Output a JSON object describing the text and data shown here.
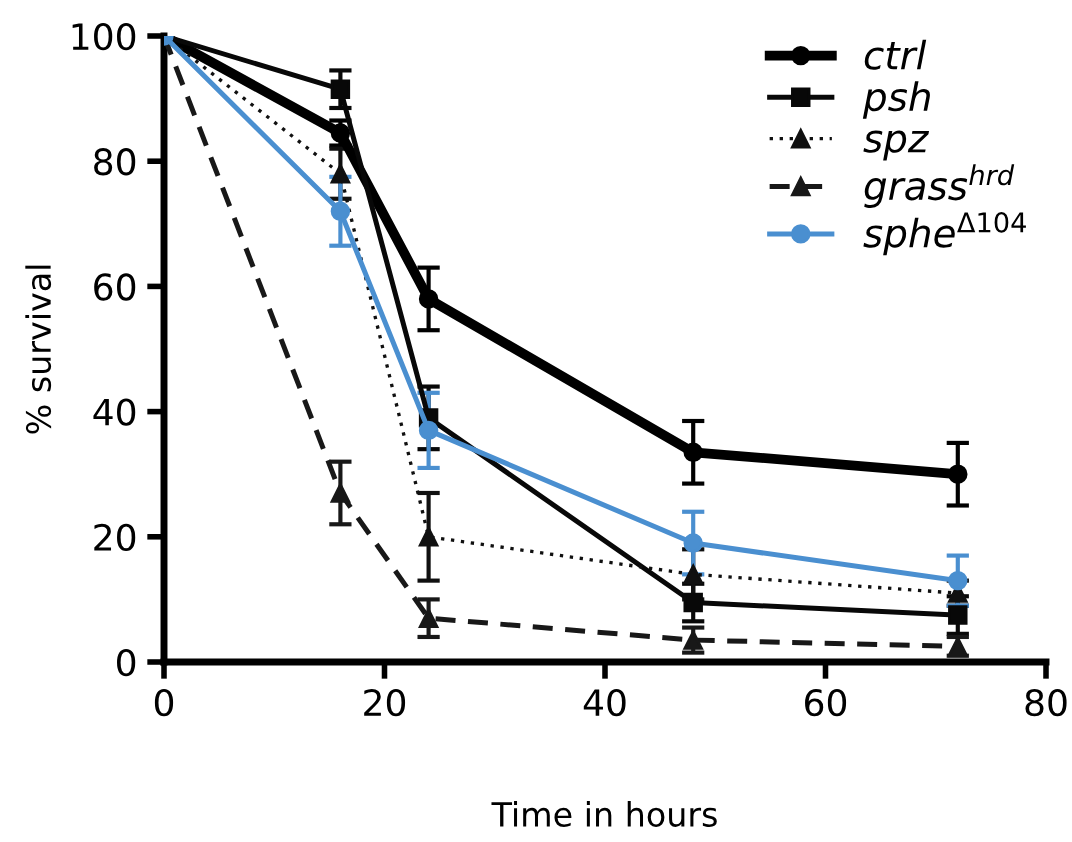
{
  "chart_data": {
    "type": "line",
    "xlabel": "Time in hours",
    "ylabel": "% survival",
    "x": [
      0,
      16,
      24,
      48,
      72
    ],
    "series": [
      {
        "name": "ctrl",
        "color": "#000000",
        "values": [
          100,
          84.5,
          58,
          33.5,
          30
        ],
        "errors": [
          null,
          2,
          5,
          5,
          5
        ],
        "marker": "circle",
        "line_style": "solid"
      },
      {
        "name": "psh",
        "color": "#080808",
        "values": [
          100,
          91.5,
          39,
          9.5,
          7.5
        ],
        "errors": [
          null,
          3,
          5,
          3,
          3
        ],
        "marker": "square",
        "line_style": "solid"
      },
      {
        "name": "spz",
        "color": "#101010",
        "values": [
          100,
          78,
          20,
          14,
          11
        ],
        "errors": [
          null,
          4,
          7,
          4,
          2
        ],
        "marker": "triangle",
        "line_style": "dotted"
      },
      {
        "name": "grass$^{hrd}$",
        "color": "#181818",
        "values": [
          100,
          27,
          7,
          3.5,
          2.5
        ],
        "errors": [
          null,
          5,
          3,
          2,
          1.5
        ],
        "marker": "triangle",
        "line_style": "dashed"
      },
      {
        "name": "sphe$^{Δ104}$",
        "color": "#4a8fd0",
        "values": [
          100,
          72,
          37,
          19,
          13
        ],
        "errors": [
          null,
          5.5,
          6,
          5,
          4
        ],
        "marker": "circle",
        "line_style": "solid"
      }
    ],
    "xlim": [
      0,
      80
    ],
    "xticks": [
      0,
      20,
      40,
      60,
      80
    ],
    "ylim": [
      0,
      100
    ],
    "yticks": [
      0,
      20,
      40,
      60,
      80,
      100
    ],
    "grid": false,
    "legend": "top right"
  }
}
